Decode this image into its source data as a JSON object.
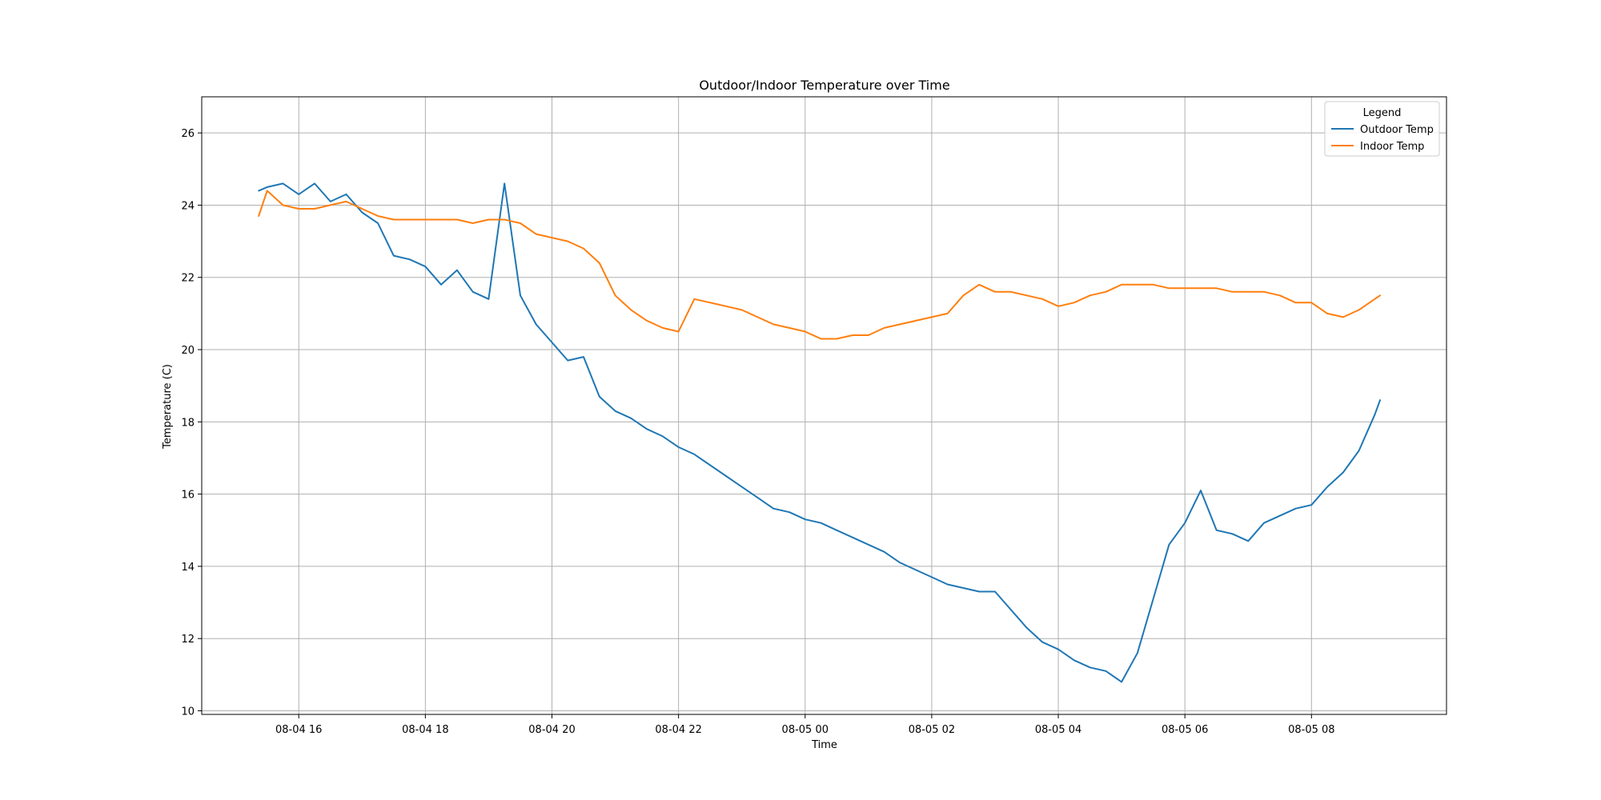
{
  "chart_data": {
    "type": "line",
    "title": "Outdoor/Indoor Temperature over Time",
    "xlabel": "Time",
    "ylabel": "Temperature (C)",
    "grid": true,
    "xlim": [
      "08-04 14:28",
      "08-05 10:08"
    ],
    "ylim": [
      9.9,
      27.0
    ],
    "x_ticks": [
      {
        "label": "08-04 16",
        "value": "08-04 16:00"
      },
      {
        "label": "08-04 18",
        "value": "08-04 18:00"
      },
      {
        "label": "08-04 20",
        "value": "08-04 20:00"
      },
      {
        "label": "08-04 22",
        "value": "08-04 22:00"
      },
      {
        "label": "08-05 00",
        "value": "08-05 00:00"
      },
      {
        "label": "08-05 02",
        "value": "08-05 02:00"
      },
      {
        "label": "08-05 04",
        "value": "08-05 04:00"
      },
      {
        "label": "08-05 06",
        "value": "08-05 06:00"
      },
      {
        "label": "08-05 08",
        "value": "08-05 08:00"
      }
    ],
    "y_ticks": [
      10,
      12,
      14,
      16,
      18,
      20,
      22,
      24,
      26
    ],
    "legend": {
      "title": "Legend",
      "position": "upper-right",
      "entries": [
        "Outdoor Temp",
        "Indoor Temp"
      ]
    },
    "x": [
      "08-04 15:22",
      "08-04 15:30",
      "08-04 15:45",
      "08-04 16:00",
      "08-04 16:15",
      "08-04 16:30",
      "08-04 16:45",
      "08-04 17:00",
      "08-04 17:15",
      "08-04 17:30",
      "08-04 17:45",
      "08-04 18:00",
      "08-04 18:15",
      "08-04 18:30",
      "08-04 18:45",
      "08-04 19:00",
      "08-04 19:15",
      "08-04 19:30",
      "08-04 19:45",
      "08-04 20:00",
      "08-04 20:15",
      "08-04 20:30",
      "08-04 20:45",
      "08-04 21:00",
      "08-04 21:15",
      "08-04 21:30",
      "08-04 21:45",
      "08-04 22:00",
      "08-04 22:15",
      "08-04 22:30",
      "08-04 22:45",
      "08-04 23:00",
      "08-04 23:15",
      "08-04 23:30",
      "08-04 23:45",
      "08-05 00:00",
      "08-05 00:15",
      "08-05 00:30",
      "08-05 00:45",
      "08-05 01:00",
      "08-05 01:15",
      "08-05 01:30",
      "08-05 01:45",
      "08-05 02:00",
      "08-05 02:15",
      "08-05 02:30",
      "08-05 02:45",
      "08-05 03:00",
      "08-05 03:15",
      "08-05 03:30",
      "08-05 03:45",
      "08-05 04:00",
      "08-05 04:15",
      "08-05 04:30",
      "08-05 04:45",
      "08-05 05:00",
      "08-05 05:15",
      "08-05 05:30",
      "08-05 05:45",
      "08-05 06:00",
      "08-05 06:15",
      "08-05 06:30",
      "08-05 06:45",
      "08-05 07:00",
      "08-05 07:15",
      "08-05 07:30",
      "08-05 07:45",
      "08-05 08:00",
      "08-05 08:15",
      "08-05 08:30",
      "08-05 08:45",
      "08-05 09:00",
      "08-05 09:05"
    ],
    "series": [
      {
        "name": "Outdoor Temp",
        "color": "#1f77b4",
        "values": [
          24.4,
          24.5,
          24.6,
          24.3,
          24.6,
          24.1,
          24.3,
          23.8,
          23.5,
          22.6,
          22.5,
          22.3,
          21.8,
          22.2,
          21.6,
          21.4,
          24.6,
          21.5,
          20.7,
          20.2,
          19.7,
          19.8,
          18.7,
          18.3,
          18.1,
          17.8,
          17.6,
          17.3,
          17.1,
          16.8,
          16.5,
          16.2,
          15.9,
          15.6,
          15.5,
          15.3,
          15.2,
          15.0,
          14.8,
          14.6,
          14.4,
          14.1,
          13.9,
          13.7,
          13.5,
          13.4,
          13.3,
          13.3,
          12.8,
          12.3,
          11.9,
          11.7,
          11.4,
          11.2,
          11.1,
          10.8,
          11.6,
          13.1,
          14.6,
          15.2,
          16.1,
          15.0,
          14.9,
          14.7,
          15.2,
          15.4,
          15.6,
          15.7,
          16.2,
          16.6,
          17.2,
          18.2,
          18.6
        ]
      },
      {
        "name": "Indoor Temp",
        "color": "#ff7f0e",
        "values": [
          23.7,
          24.4,
          24.0,
          23.9,
          23.9,
          24.0,
          24.1,
          23.9,
          23.7,
          23.6,
          23.6,
          23.6,
          23.6,
          23.6,
          23.5,
          23.6,
          23.6,
          23.5,
          23.2,
          23.1,
          23.0,
          22.8,
          22.4,
          21.5,
          21.1,
          20.8,
          20.6,
          20.5,
          21.4,
          21.3,
          21.2,
          21.1,
          20.9,
          20.7,
          20.6,
          20.5,
          20.3,
          20.3,
          20.4,
          20.4,
          20.6,
          20.7,
          20.8,
          20.9,
          21.0,
          21.5,
          21.8,
          21.6,
          21.6,
          21.5,
          21.4,
          21.2,
          21.3,
          21.5,
          21.6,
          21.8,
          21.8,
          21.8,
          21.7,
          21.7,
          21.7,
          21.7,
          21.6,
          21.6,
          21.6,
          21.5,
          21.3,
          21.3,
          21.0,
          20.9,
          21.1,
          21.4,
          21.5
        ]
      }
    ]
  }
}
